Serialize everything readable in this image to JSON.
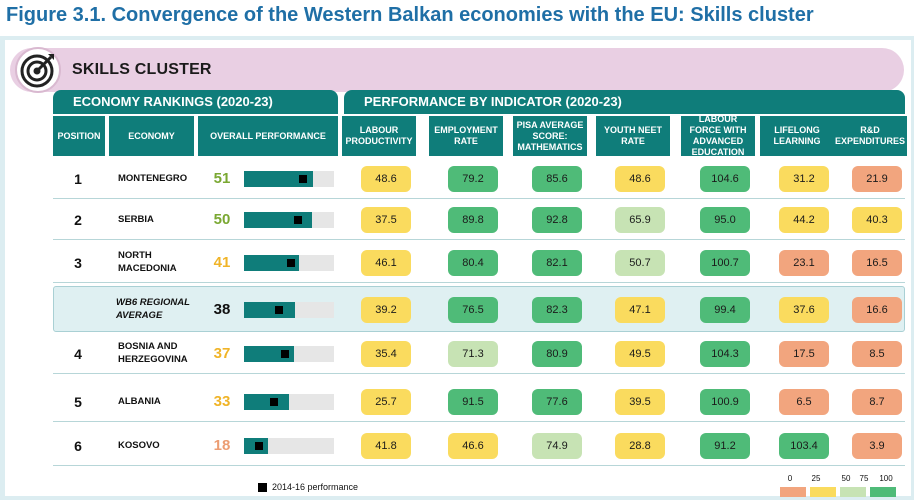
{
  "figure_title": "Figure 3.1. Convergence of the Western Balkan economies with the EU: Skills cluster",
  "cluster_title": "SKILLS CLUSTER",
  "sections": {
    "rankings": "ECONOMY RANKINGS (2020-23)",
    "performance": "PERFORMANCE BY INDICATOR (2020-23)"
  },
  "columns": {
    "position": "POSITION",
    "economy": "ECONOMY",
    "overall": "OVERALL PERFORMANCE",
    "indicators": [
      "LABOUR PRODUCTIVITY",
      "EMPLOYMENT RATE",
      "PISA AVERAGE SCORE: MATHEMATICS",
      "YOUTH NEET RATE",
      "LABOUR FORCE WITH ADVANCED EDUCATION",
      "LIFELONG LEARNING",
      "R&D EXPENDITURES"
    ]
  },
  "colors": {
    "teal": "#0f7d7a",
    "score_green": "#7aa832",
    "score_yellow": "#f0b428",
    "score_orange": "#ec9d73",
    "score_black": "#111111",
    "cell_orange": "#f2a57e",
    "cell_yellow": "#fadb5e",
    "cell_light_green": "#c7e3b4",
    "cell_green": "#4fbb78"
  },
  "rows": [
    {
      "position": "1",
      "economy": "MONTENEGRO",
      "score": "51",
      "score_color": "green",
      "performance": 51,
      "performance_2014_16": 44,
      "values": [
        "48.6",
        "79.2",
        "85.6",
        "48.6",
        "104.6",
        "31.2",
        "21.9"
      ],
      "shades": [
        "yellow",
        "green",
        "green",
        "yellow",
        "green",
        "yellow",
        "orange"
      ]
    },
    {
      "position": "2",
      "economy": "SERBIA",
      "score": "50",
      "score_color": "green",
      "performance": 50,
      "performance_2014_16": 40,
      "values": [
        "37.5",
        "89.8",
        "92.8",
        "65.9",
        "95.0",
        "44.2",
        "40.3"
      ],
      "shades": [
        "yellow",
        "green",
        "green",
        "lightgreen",
        "green",
        "yellow",
        "yellow"
      ]
    },
    {
      "position": "3",
      "economy": "NORTH MACEDONIA",
      "score": "41",
      "score_color": "yellow",
      "performance": 41,
      "performance_2014_16": 35,
      "values": [
        "46.1",
        "80.4",
        "82.1",
        "50.7",
        "100.7",
        "23.1",
        "16.5"
      ],
      "shades": [
        "yellow",
        "green",
        "green",
        "lightgreen",
        "green",
        "orange",
        "orange"
      ]
    },
    {
      "position": "",
      "economy": "WB6 REGIONAL AVERAGE",
      "score": "38",
      "score_color": "black",
      "performance": 38,
      "performance_2014_16": 26,
      "values": [
        "39.2",
        "76.5",
        "82.3",
        "47.1",
        "99.4",
        "37.6",
        "16.6"
      ],
      "shades": [
        "yellow",
        "green",
        "green",
        "yellow",
        "green",
        "yellow",
        "orange"
      ],
      "is_average": true
    },
    {
      "position": "4",
      "economy": "BOSNIA AND HERZEGOVINA",
      "score": "37",
      "score_color": "yellow",
      "performance": 37,
      "performance_2014_16": 30,
      "values": [
        "35.4",
        "71.3",
        "80.9",
        "49.5",
        "104.3",
        "17.5",
        "8.5"
      ],
      "shades": [
        "yellow",
        "lightgreen",
        "green",
        "yellow",
        "green",
        "orange",
        "orange"
      ]
    },
    {
      "position": "5",
      "economy": "ALBANIA",
      "score": "33",
      "score_color": "yellow",
      "performance": 33,
      "performance_2014_16": 22,
      "values": [
        "25.7",
        "91.5",
        "77.6",
        "39.5",
        "100.9",
        "6.5",
        "8.7"
      ],
      "shades": [
        "yellow",
        "green",
        "green",
        "yellow",
        "green",
        "orange",
        "orange"
      ]
    },
    {
      "position": "6",
      "economy": "KOSOVO",
      "score": "18",
      "score_color": "orange",
      "performance": 18,
      "performance_2014_16": 11,
      "values": [
        "41.8",
        "46.6",
        "74.9",
        "28.8",
        "91.2",
        "103.4",
        "3.9"
      ],
      "shades": [
        "yellow",
        "yellow",
        "lightgreen",
        "yellow",
        "green",
        "green",
        "orange"
      ]
    }
  ],
  "legend": {
    "previous_label": "2014-16 performance",
    "scale_ticks": [
      "0",
      "25",
      "50",
      "75",
      "100"
    ],
    "scale_colors": [
      "#f2a57e",
      "#fadb5e",
      "#c7e3b4",
      "#4fbb78"
    ]
  }
}
